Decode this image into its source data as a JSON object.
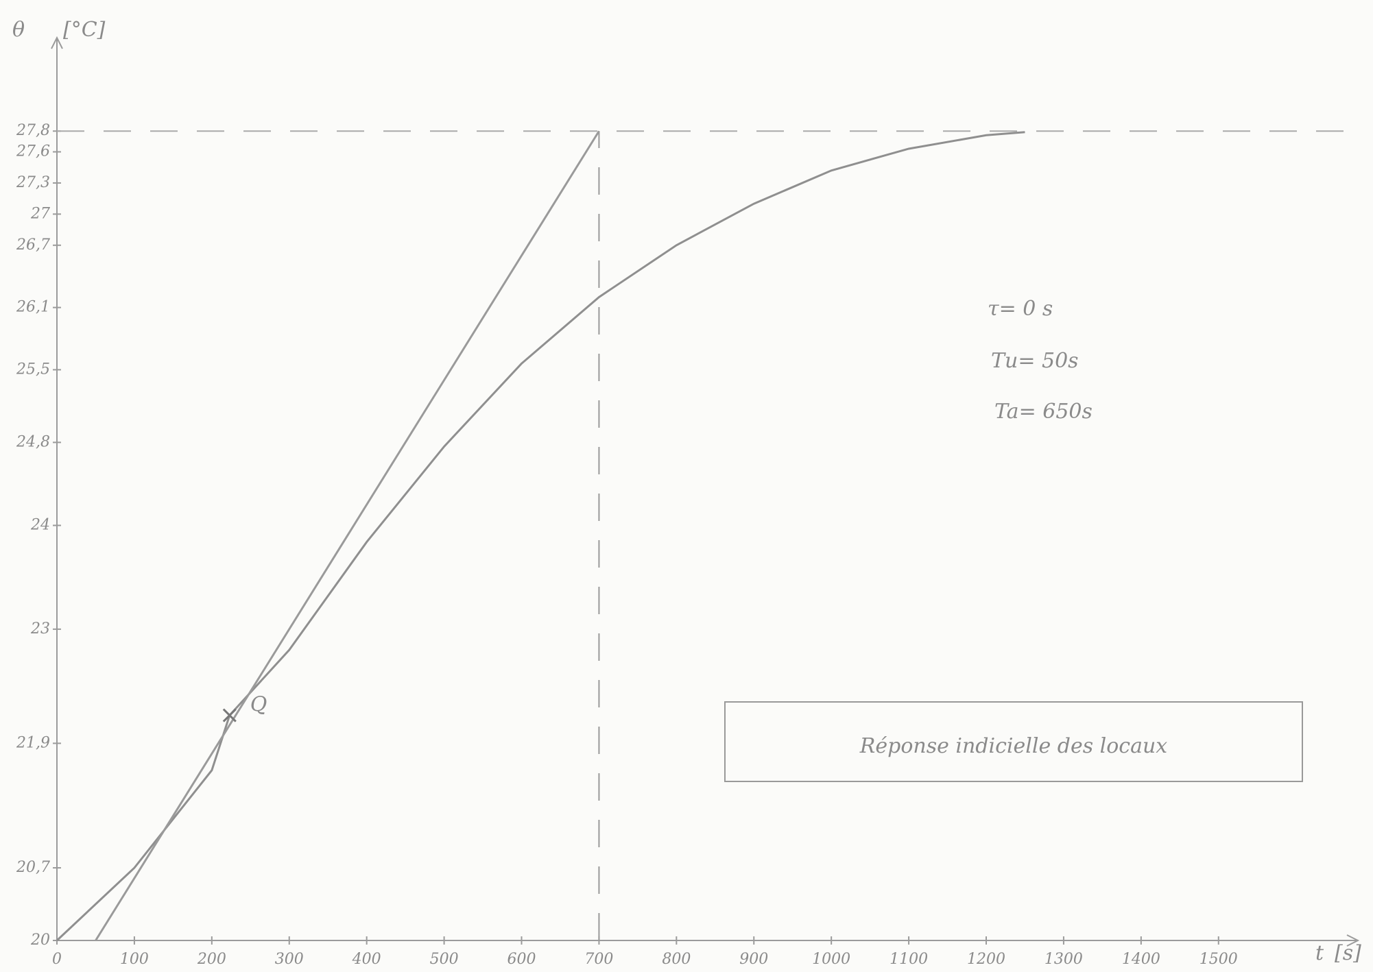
{
  "chart_data": {
    "type": "line",
    "y_label": "θ",
    "y_unit": "[°C]",
    "x_label": "t",
    "x_unit": "[s]",
    "xlim": [
      0,
      1680
    ],
    "ylim": [
      20,
      28.7
    ],
    "xticks": [
      0,
      100,
      200,
      300,
      400,
      500,
      600,
      700,
      800,
      900,
      1000,
      1100,
      1200,
      1300,
      1400,
      1500
    ],
    "yticks": [
      20,
      {
        "value": 20.7,
        "label": "20,7"
      },
      {
        "value": 21.9,
        "label": "21,9"
      },
      23,
      24,
      {
        "value": 24.8,
        "label": "24,8"
      },
      {
        "value": 25.5,
        "label": "25,5"
      },
      {
        "value": 26.1,
        "label": "26,1"
      },
      {
        "value": 26.7,
        "label": "26,7"
      },
      27,
      {
        "value": 27.3,
        "label": "27,3"
      },
      {
        "value": 27.6,
        "label": "27,6"
      },
      {
        "value": 27.8,
        "label": "27,8"
      }
    ],
    "grid": false,
    "series": [
      {
        "color": "#8f8f8f",
        "x": [
          0,
          100,
          200,
          223,
          300,
          400,
          500,
          600,
          700,
          800,
          900,
          1000,
          1100,
          1200,
          1250
        ],
        "values": [
          20,
          20.7,
          21.64,
          22.17,
          22.8,
          23.84,
          24.76,
          25.56,
          26.2,
          26.7,
          27.1,
          27.42,
          27.63,
          27.76,
          27.79
        ]
      },
      {
        "color": "#9a9a9a",
        "x": [
          50,
          700
        ],
        "values": [
          20,
          27.8
        ]
      }
    ],
    "hline": 27.8,
    "vline": 700,
    "point": {
      "label": "Q",
      "x": 223,
      "y": 22.17
    },
    "annotations": [
      "τ= 0 s",
      "Tu= 50s",
      "Ta= 650s"
    ],
    "box_label": "Réponse indicielle des locaux"
  }
}
